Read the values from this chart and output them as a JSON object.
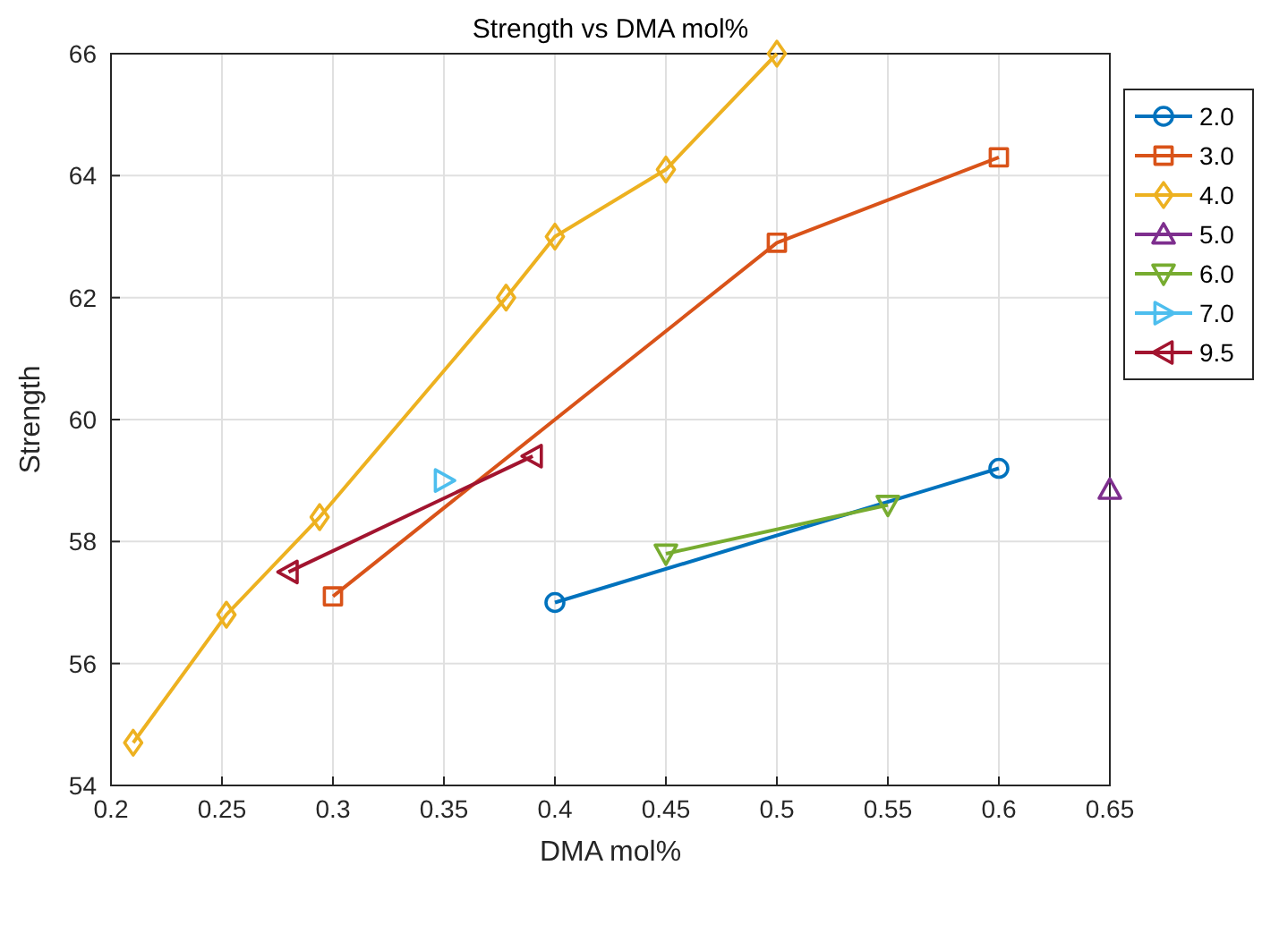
{
  "chart_data": {
    "type": "line",
    "title": "Strength vs DMA mol%",
    "xlabel": "DMA mol%",
    "ylabel": "Strength",
    "xlim": [
      0.2,
      0.65
    ],
    "xticks": [
      0.2,
      0.25,
      0.3,
      0.35,
      0.4,
      0.45,
      0.5,
      0.55,
      0.6,
      0.65
    ],
    "ylim": [
      54,
      66
    ],
    "yticks": [
      54,
      56,
      58,
      60,
      62,
      64,
      66
    ],
    "grid": true,
    "legend": "right",
    "series": [
      {
        "name": "2.0",
        "color": "#0072bd",
        "marker": "circle",
        "x": [
          0.4,
          0.6
        ],
        "values": [
          57.0,
          59.2
        ]
      },
      {
        "name": "3.0",
        "color": "#d95319",
        "marker": "square",
        "x": [
          0.3,
          0.5,
          0.6
        ],
        "values": [
          57.1,
          62.9,
          64.3
        ]
      },
      {
        "name": "4.0",
        "color": "#edb120",
        "marker": "diamond",
        "x": [
          0.21,
          0.252,
          0.294,
          0.378,
          0.4,
          0.45,
          0.5
        ],
        "values": [
          54.7,
          56.8,
          58.4,
          62.0,
          63.0,
          64.1,
          66.0
        ]
      },
      {
        "name": "5.0",
        "color": "#7e2f8e",
        "marker": "triangle",
        "x": [
          0.65
        ],
        "values": [
          58.85
        ]
      },
      {
        "name": "6.0",
        "color": "#77ac30",
        "marker": "triangle-down",
        "x": [
          0.45,
          0.55
        ],
        "values": [
          57.8,
          58.6
        ]
      },
      {
        "name": "7.0",
        "color": "#4dbeee",
        "marker": "triangle-right",
        "x": [
          0.35
        ],
        "values": [
          59.0
        ]
      },
      {
        "name": "9.5",
        "color": "#a2142f",
        "marker": "triangle-left",
        "x": [
          0.28,
          0.39
        ],
        "values": [
          57.5,
          59.4
        ]
      }
    ]
  }
}
